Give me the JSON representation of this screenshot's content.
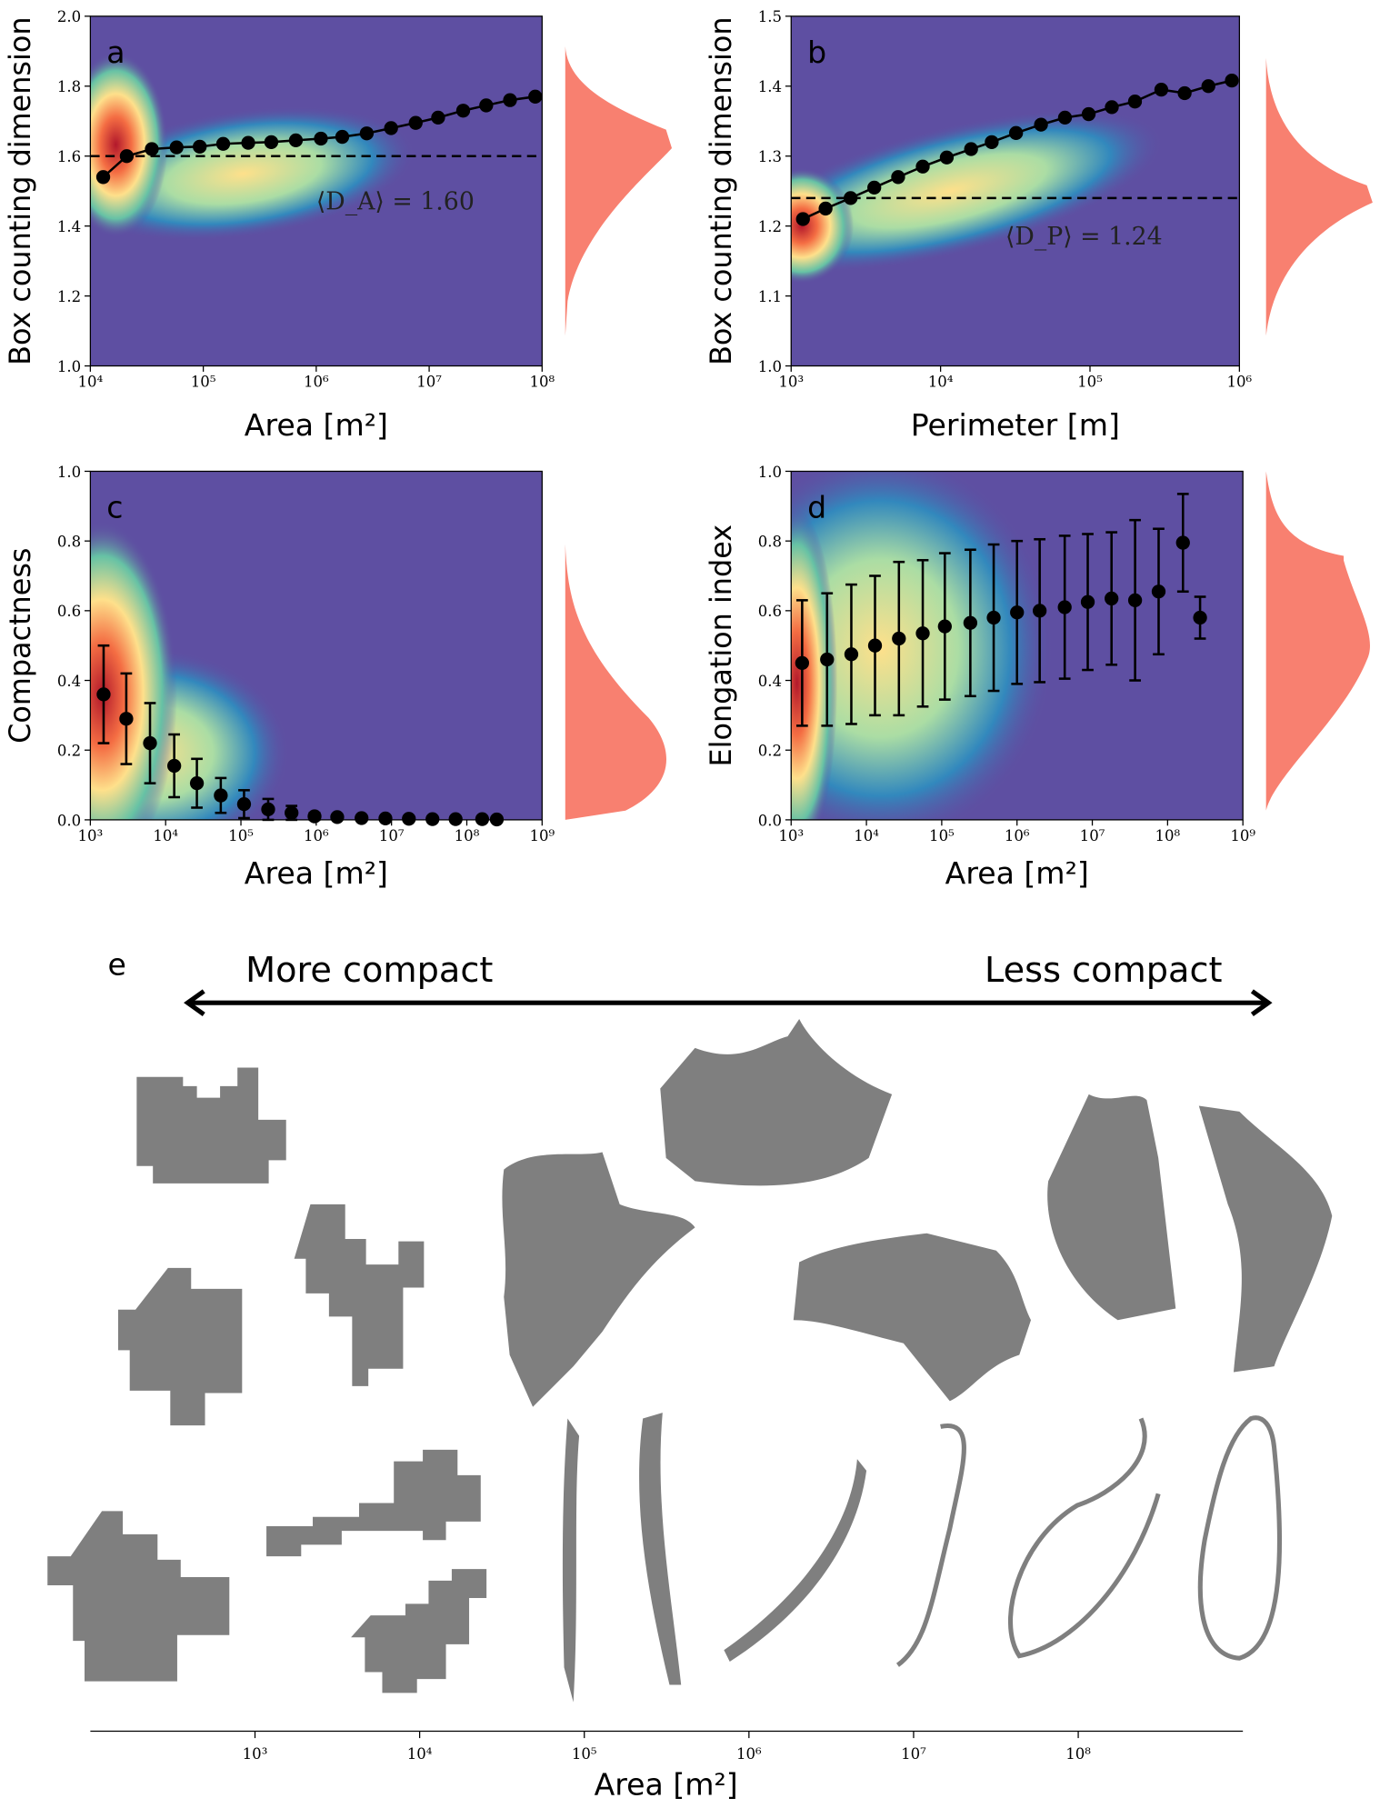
{
  "chart_data": [
    {
      "type": "line",
      "panel": "a",
      "xlabel": "Area [m²]",
      "ylabel": "Box counting dimension",
      "xscale": "log",
      "xlim": [
        10000,
        100000000
      ],
      "xticks": [
        {
          "value": 10000,
          "label": "10⁴"
        },
        {
          "value": 100000,
          "label": "10⁵"
        },
        {
          "value": 1000000,
          "label": "10⁶"
        },
        {
          "value": 10000000,
          "label": "10⁷"
        },
        {
          "value": 100000000,
          "label": "10⁸"
        }
      ],
      "ylim": [
        1,
        2
      ],
      "yticks": [
        {
          "value": 1,
          "label": "1.0"
        },
        1.2,
        1.4,
        1.6,
        1.8,
        {
          "value": 2,
          "label": "2.0"
        }
      ],
      "x": [
        13000,
        21000,
        35000,
        58000,
        93000,
        150000,
        250000,
        400000,
        660000,
        1100000,
        1700000,
        2800000,
        4600000,
        7600000,
        12000000,
        20000000,
        32000000,
        52000000,
        87000000
      ],
      "values": [
        1.54,
        1.6,
        1.62,
        1.625,
        1.627,
        1.635,
        1.638,
        1.64,
        1.645,
        1.65,
        1.655,
        1.665,
        1.68,
        1.695,
        1.71,
        1.73,
        1.745,
        1.76,
        1.77
      ],
      "color": "#000000",
      "hline": {
        "value": 1.6,
        "label": "⟨D_A⟩ = 1.60"
      }
    },
    {
      "type": "line",
      "panel": "b",
      "xlabel": "Perimeter [m]",
      "ylabel": "Box counting dimension",
      "xscale": "log",
      "xlim": [
        1000,
        1000000
      ],
      "xticks": [
        {
          "value": 1000,
          "label": "10³"
        },
        {
          "value": 10000,
          "label": "10⁴"
        },
        {
          "value": 100000,
          "label": "10⁵"
        },
        {
          "value": 1000000,
          "label": "10⁶"
        }
      ],
      "ylim": [
        1,
        1.5
      ],
      "yticks": [
        {
          "value": 1,
          "label": "1.0"
        },
        1.1,
        1.2,
        1.3,
        1.4,
        1.5
      ],
      "x": [
        1200,
        1700,
        2500,
        3600,
        5200,
        7600,
        11000,
        16000,
        22000,
        32000,
        47000,
        68000,
        98000,
        140000,
        200000,
        300000,
        430000,
        620000,
        890000
      ],
      "values": [
        1.21,
        1.225,
        1.24,
        1.255,
        1.27,
        1.285,
        1.298,
        1.31,
        1.32,
        1.333,
        1.345,
        1.355,
        1.36,
        1.37,
        1.378,
        1.395,
        1.39,
        1.4,
        1.408
      ],
      "color": "#000000",
      "hline": {
        "value": 1.24,
        "label": "⟨D_P⟩ = 1.24"
      }
    },
    {
      "type": "errorbar",
      "panel": "c",
      "xlabel": "Area [m²]",
      "ylabel": "Compactness",
      "xscale": "log",
      "xlim": [
        1000,
        1000000000
      ],
      "xticks": [
        {
          "value": 1000,
          "label": "10³"
        },
        {
          "value": 10000,
          "label": "10⁴"
        },
        {
          "value": 100000,
          "label": "10⁵"
        },
        {
          "value": 1000000,
          "label": "10⁶"
        },
        {
          "value": 10000000,
          "label": "10⁷"
        },
        {
          "value": 100000000,
          "label": "10⁸"
        },
        {
          "value": 1000000000,
          "label": "10⁹"
        }
      ],
      "ylim": [
        0,
        1
      ],
      "yticks": [
        {
          "value": 0,
          "label": "0.0"
        },
        0.2,
        0.4,
        0.6,
        0.8,
        {
          "value": 1,
          "label": "1.0"
        }
      ],
      "x": [
        1500,
        3000,
        6200,
        13000,
        26000,
        54000,
        110000,
        230000,
        470000,
        950000,
        1900000,
        4000000,
        8300000,
        17000000,
        35000000,
        71000000,
        160000000,
        250000000
      ],
      "values": [
        0.36,
        0.29,
        0.22,
        0.155,
        0.105,
        0.07,
        0.045,
        0.03,
        0.02,
        0.01,
        0.008,
        0.005,
        0.004,
        0.003,
        0.002,
        0.002,
        0.002,
        0.001
      ],
      "errors": [
        0.14,
        0.13,
        0.115,
        0.09,
        0.07,
        0.05,
        0.04,
        0.03,
        0.02,
        0.01,
        0.008,
        0.005,
        0.004,
        0.003,
        0.002,
        0.002,
        0.002,
        0.001
      ],
      "color": "#000000"
    },
    {
      "type": "errorbar",
      "panel": "d",
      "xlabel": "Area [m²]",
      "ylabel": "Elongation index",
      "xscale": "log",
      "xlim": [
        1000,
        1000000000
      ],
      "xticks": [
        {
          "value": 1000,
          "label": "10³"
        },
        {
          "value": 10000,
          "label": "10⁴"
        },
        {
          "value": 100000,
          "label": "10⁵"
        },
        {
          "value": 1000000,
          "label": "10⁶"
        },
        {
          "value": 10000000,
          "label": "10⁷"
        },
        {
          "value": 100000000,
          "label": "10⁸"
        },
        {
          "value": 1000000000,
          "label": "10⁹"
        }
      ],
      "ylim": [
        0,
        1
      ],
      "yticks": [
        {
          "value": 0,
          "label": "0.0"
        },
        0.2,
        0.4,
        0.6,
        0.8,
        {
          "value": 1,
          "label": "1.0"
        }
      ],
      "x": [
        1400,
        3000,
        6300,
        13000,
        27000,
        56000,
        110000,
        240000,
        490000,
        1000000,
        2000000,
        4300000,
        8700000,
        18000000,
        37000000,
        76000000,
        160000000,
        270000000
      ],
      "values": [
        0.45,
        0.46,
        0.475,
        0.5,
        0.52,
        0.535,
        0.555,
        0.565,
        0.58,
        0.595,
        0.6,
        0.61,
        0.625,
        0.635,
        0.63,
        0.655,
        0.795,
        0.58
      ],
      "errors": [
        0.18,
        0.19,
        0.2,
        0.2,
        0.22,
        0.21,
        0.21,
        0.21,
        0.21,
        0.205,
        0.205,
        0.205,
        0.195,
        0.19,
        0.23,
        0.18,
        0.14,
        0.06
      ],
      "color": "#000000"
    },
    {
      "type": "axis",
      "panel": "e",
      "xlabel": "Area [m²]",
      "xscale": "log",
      "left_label": "More compact",
      "right_label": "Less compact",
      "xlim": [
        100,
        1000000000
      ],
      "xticks": [
        {
          "value": 1000,
          "label": "10³"
        },
        {
          "value": 10000,
          "label": "10⁴"
        },
        {
          "value": 100000,
          "label": "10⁵"
        },
        {
          "value": 1000000,
          "label": "10⁶"
        },
        {
          "value": 10000000,
          "label": "10⁷"
        },
        {
          "value": 100000000,
          "label": "10⁸"
        }
      ]
    }
  ]
}
